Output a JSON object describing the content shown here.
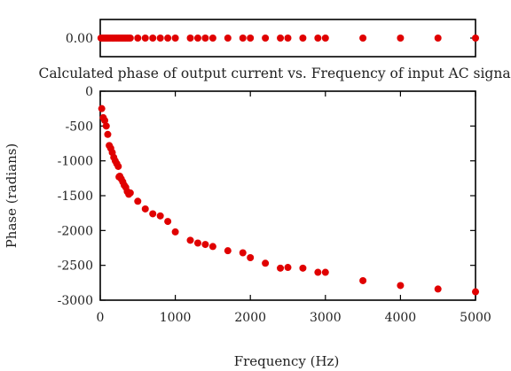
{
  "chart_data": [
    {
      "type": "scatter",
      "title": "",
      "xlabel": "",
      "ylabel": "",
      "xlim": [
        0,
        5000
      ],
      "ylim": [
        -0.005,
        0.005
      ],
      "yticks": [
        "0.00"
      ],
      "marker_color": "#e00000",
      "series": [
        {
          "x": [
            10,
            20,
            30,
            40,
            50,
            60,
            70,
            80,
            90,
            100,
            120,
            140,
            160,
            180,
            200,
            220,
            240,
            260,
            280,
            300,
            320,
            340,
            360,
            380,
            400,
            500,
            600,
            700,
            800,
            900,
            1000,
            1200,
            1300,
            1400,
            1500,
            1700,
            1900,
            2000,
            2200,
            2400,
            2500,
            2700,
            2900,
            3000,
            3500,
            4000,
            4500,
            5000
          ],
          "y": [
            0,
            0,
            0,
            0,
            0,
            0,
            0,
            0,
            0,
            0,
            0,
            0,
            0,
            0,
            0,
            0,
            0,
            0,
            0,
            0,
            0,
            0,
            0,
            0,
            0,
            0,
            0,
            0,
            0,
            0,
            0,
            0,
            0,
            0,
            0,
            0,
            0,
            0,
            0,
            0,
            0,
            0,
            0,
            0,
            0,
            0,
            0,
            0
          ]
        }
      ]
    },
    {
      "type": "scatter",
      "title": "Calculated phase of output current vs. Frequency of input AC signal",
      "xlabel": "Frequency (Hz)",
      "ylabel": "Phase (radians)",
      "xlim": [
        0,
        5000
      ],
      "ylim": [
        -3000,
        0
      ],
      "xticks": [
        "0",
        "1000",
        "2000",
        "3000",
        "4000",
        "5000"
      ],
      "yticks": [
        "0",
        "-500",
        "-1000",
        "-1500",
        "-2000",
        "-2500",
        "-3000"
      ],
      "marker_color": "#e00000",
      "series": [
        {
          "x": [
            20,
            40,
            60,
            80,
            100,
            120,
            140,
            160,
            180,
            200,
            220,
            240,
            250,
            260,
            280,
            300,
            320,
            340,
            360,
            380,
            400,
            500,
            600,
            700,
            800,
            900,
            1000,
            1200,
            1300,
            1400,
            1500,
            1700,
            1900,
            2000,
            2200,
            2400,
            2500,
            2700,
            2900,
            3000,
            3500,
            4000,
            4500,
            5000
          ],
          "y": [
            -250,
            -380,
            -420,
            -500,
            -620,
            -780,
            -820,
            -880,
            -950,
            -1000,
            -1040,
            -1080,
            -1230,
            -1220,
            -1260,
            -1300,
            -1350,
            -1380,
            -1440,
            -1480,
            -1460,
            -1580,
            -1690,
            -1760,
            -1790,
            -1870,
            -2020,
            -2140,
            -2180,
            -2200,
            -2230,
            -2290,
            -2320,
            -2390,
            -2470,
            -2540,
            -2530,
            -2540,
            -2600,
            -2600,
            -2720,
            -2790,
            -2840,
            -2880
          ]
        }
      ]
    }
  ]
}
